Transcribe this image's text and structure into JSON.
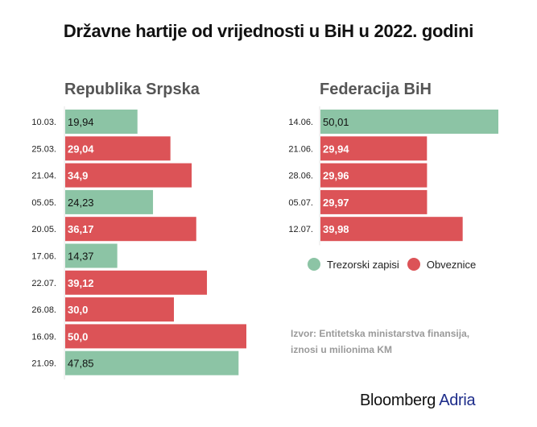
{
  "title": "Državne hartije od vrijednosti u BiH u 2022. godini",
  "colors": {
    "trezorski": "#8cc4a5",
    "obveznice": "#dc5357"
  },
  "legend": [
    {
      "label": "Trezorski zapisi",
      "key": "trezorski"
    },
    {
      "label": "Obveznice",
      "key": "obveznice"
    }
  ],
  "source_line1": "Izvor: Entitetska ministarstva finansija,",
  "source_line2": "iznosi u milionima KM",
  "logo": {
    "part1": "Bloomberg",
    "part2": "Adria"
  },
  "chart_data": [
    {
      "type": "bar",
      "orientation": "horizontal",
      "title": "Republika Srpska",
      "categories": [
        "10.03.",
        "25.03.",
        "21.04.",
        "05.05.",
        "20.05.",
        "17.06.",
        "22.07.",
        "26.08.",
        "16.09.",
        "21.09."
      ],
      "values": [
        19.94,
        29.04,
        34.9,
        24.23,
        36.17,
        14.37,
        39.12,
        30.0,
        50.0,
        47.85
      ],
      "labels": [
        "19,94",
        "29,04",
        "34,9",
        "24,23",
        "36,17",
        "14,37",
        "39,12",
        "30,0",
        "50,0",
        "47,85"
      ],
      "types": [
        "trezorski",
        "obveznice",
        "obveznice",
        "trezorski",
        "obveznice",
        "trezorski",
        "obveznice",
        "obveznice",
        "obveznice",
        "trezorski"
      ],
      "unit": "milioni KM",
      "xlim": [
        0,
        50
      ]
    },
    {
      "type": "bar",
      "orientation": "horizontal",
      "title": "Federacija BiH",
      "categories": [
        "14.06.",
        "21.06.",
        "28.06.",
        "05.07.",
        "12.07."
      ],
      "values": [
        50.01,
        29.94,
        29.96,
        29.97,
        39.98
      ],
      "labels": [
        "50,01",
        "29,94",
        "29,96",
        "29,97",
        "39,98"
      ],
      "types": [
        "trezorski",
        "obveznice",
        "obveznice",
        "obveznice",
        "obveznice"
      ],
      "unit": "milioni KM",
      "xlim": [
        0,
        50.01
      ]
    }
  ]
}
